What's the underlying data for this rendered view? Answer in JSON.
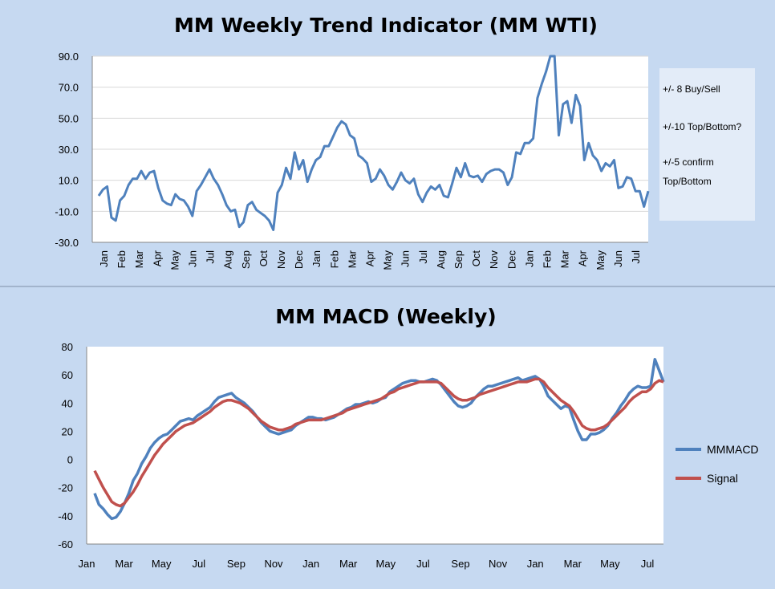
{
  "colors": {
    "background": "#c6d9f1",
    "plot_area": "#ffffff",
    "wti_line": "#4f81bd",
    "macd_line": "#4f81bd",
    "signal_line": "#c0504d",
    "note_box": "#e3ecf8",
    "gridline": "#d9d9d9"
  },
  "chart_data": [
    {
      "type": "line",
      "title": "MM Weekly Trend Indicator (MM WTI)",
      "xlabel": "",
      "ylabel": "",
      "ylim": [
        -30,
        90
      ],
      "yticks": [
        "90.0",
        "70.0",
        "50.0",
        "30.0",
        "10.0",
        "-10.0",
        "-30.0"
      ],
      "grid": true,
      "month_labels": [
        "Jan",
        "Feb",
        "Mar",
        "Apr",
        "May",
        "Jun",
        "Jul",
        "Aug",
        "Sep",
        "Oct",
        "Nov",
        "Dec",
        "Jan",
        "Feb",
        "Mar",
        "Apr",
        "May",
        "Jun",
        "Jul",
        "Aug",
        "Sep",
        "Oct",
        "Nov",
        "Dec",
        "Jan",
        "Feb",
        "Mar",
        "Apr",
        "May",
        "Jun",
        "Jul"
      ],
      "notes": [
        "+/- 8 Buy/Sell",
        "+/-10 Top/Bottom?",
        "+/-5 confirm",
        "Top/Bottom"
      ],
      "series": [
        {
          "values": [
            0,
            4,
            6,
            -14,
            -16,
            -3,
            0,
            7,
            11,
            11,
            16,
            11,
            15,
            16,
            5,
            -3,
            -5,
            -6,
            1,
            -2,
            -3,
            -7,
            -13,
            3,
            7,
            12,
            17,
            11,
            7,
            1,
            -6,
            -10,
            -9,
            -20,
            -17,
            -6,
            -4,
            -9,
            -11,
            -13,
            -16,
            -22,
            2,
            7,
            18,
            11,
            28,
            17,
            23,
            9,
            17,
            23,
            25,
            32,
            32,
            38,
            44,
            48,
            46,
            39,
            37,
            26,
            24,
            21,
            9,
            11,
            17,
            13,
            7,
            4,
            9,
            15,
            10,
            8,
            11,
            1,
            -4,
            2,
            6,
            4,
            7,
            0,
            -1,
            8,
            18,
            12,
            21,
            13,
            12,
            13,
            9,
            14,
            16,
            17,
            17,
            15,
            7,
            12,
            28,
            27,
            34,
            34,
            37,
            63,
            72,
            80,
            90,
            95,
            39,
            59,
            61,
            47,
            65,
            58,
            23,
            34,
            26,
            23,
            16,
            21,
            19,
            23,
            5,
            6,
            12,
            11,
            3,
            3,
            -7,
            3
          ],
          "ylim_clip": [
            -30,
            90
          ]
        }
      ]
    },
    {
      "type": "line",
      "title": "MM MACD (Weekly)",
      "xlabel": "",
      "ylabel": "",
      "ylim": [
        -60,
        80
      ],
      "yticks": [
        "80",
        "60",
        "40",
        "20",
        "0",
        "-20",
        "-40",
        "-60"
      ],
      "grid": false,
      "month_labels": [
        "Jan",
        "Mar",
        "May",
        "Jul",
        "Sep",
        "Nov",
        "Jan",
        "Mar",
        "May",
        "Jul",
        "Sep",
        "Nov",
        "Jan",
        "Mar",
        "May",
        "Jul"
      ],
      "legend_position": "right",
      "series": [
        {
          "name": "MMMACD",
          "values": [
            -24,
            -32,
            -35,
            -39,
            -42,
            -41,
            -37,
            -31,
            -24,
            -15,
            -10,
            -3,
            2,
            8,
            12,
            15,
            17,
            18,
            21,
            24,
            27,
            28,
            29,
            28,
            31,
            33,
            35,
            37,
            41,
            44,
            45,
            46,
            47,
            44,
            42,
            40,
            37,
            34,
            30,
            26,
            23,
            20,
            19,
            18,
            19,
            20,
            21,
            24,
            26,
            28,
            30,
            30,
            29,
            29,
            28,
            29,
            30,
            32,
            34,
            36,
            37,
            39,
            39,
            40,
            41,
            40,
            41,
            43,
            44,
            48,
            50,
            52,
            54,
            55,
            56,
            56,
            55,
            55,
            56,
            57,
            56,
            53,
            49,
            45,
            41,
            38,
            37,
            38,
            40,
            44,
            47,
            50,
            52,
            52,
            53,
            54,
            55,
            56,
            57,
            58,
            56,
            57,
            58,
            59,
            57,
            52,
            45,
            42,
            39,
            36,
            38,
            37,
            28,
            20,
            14,
            14,
            18,
            18,
            19,
            21,
            24,
            29,
            33,
            38,
            42,
            47,
            50,
            52,
            51,
            51,
            52,
            71,
            63,
            55
          ],
          "color": "#4f81bd"
        },
        {
          "name": "Signal",
          "values": [
            -8,
            -14,
            -20,
            -25,
            -30,
            -32,
            -33,
            -31,
            -27,
            -23,
            -18,
            -12,
            -7,
            -2,
            3,
            7,
            11,
            14,
            17,
            20,
            22,
            24,
            25,
            26,
            28,
            30,
            32,
            34,
            37,
            39,
            41,
            42,
            42,
            41,
            40,
            38,
            36,
            33,
            30,
            27,
            25,
            23,
            22,
            21,
            21,
            22,
            23,
            25,
            26,
            27,
            28,
            28,
            28,
            28,
            29,
            30,
            31,
            32,
            33,
            35,
            36,
            37,
            38,
            39,
            40,
            41,
            42,
            43,
            45,
            47,
            48,
            50,
            51,
            52,
            53,
            54,
            55,
            55,
            55,
            55,
            55,
            54,
            51,
            48,
            45,
            43,
            42,
            42,
            43,
            44,
            46,
            47,
            48,
            49,
            50,
            51,
            52,
            53,
            54,
            55,
            55,
            55,
            56,
            57,
            57,
            55,
            51,
            48,
            45,
            42,
            40,
            38,
            34,
            29,
            24,
            22,
            21,
            21,
            22,
            23,
            25,
            28,
            31,
            34,
            37,
            41,
            44,
            46,
            48,
            48,
            50,
            54,
            56,
            55
          ],
          "color": "#c0504d"
        }
      ]
    }
  ]
}
